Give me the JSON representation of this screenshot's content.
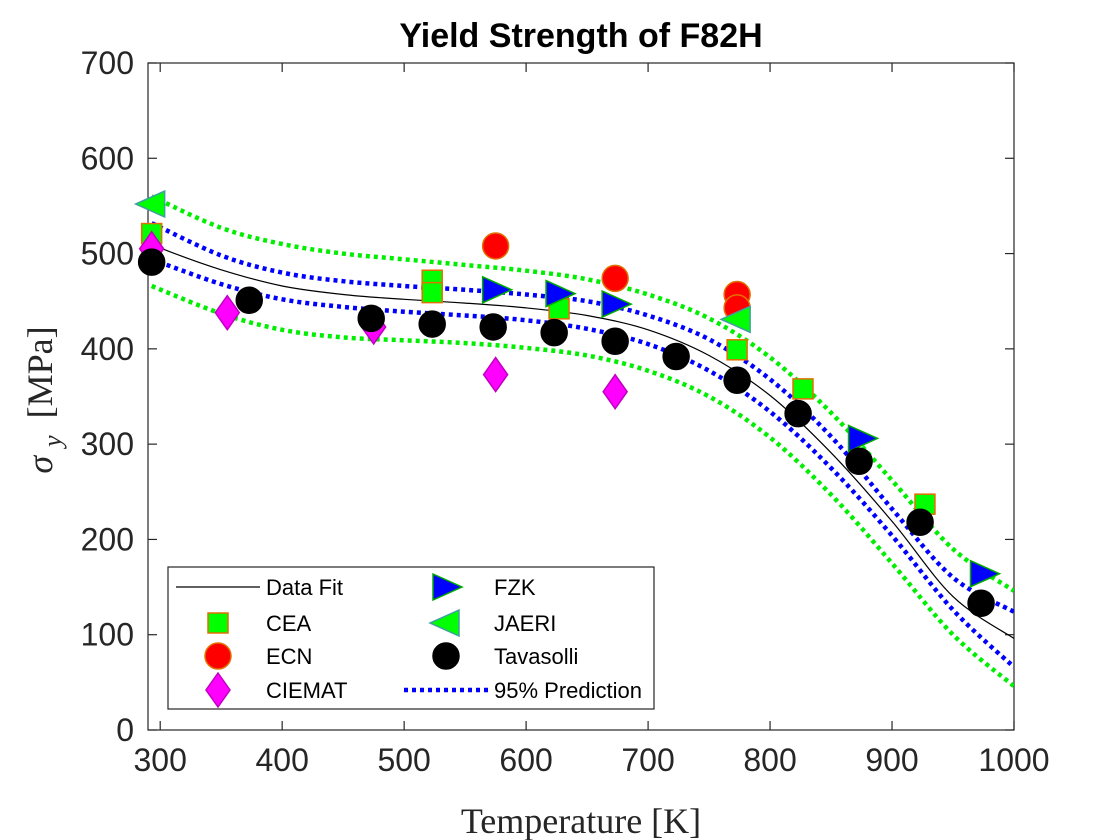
{
  "chart_data": {
    "type": "scatter",
    "title": "Yield Strength of F82H",
    "xlabel": "Temperature [K]",
    "ylabel_symbol": "σ",
    "ylabel_subscript": "y",
    "ylabel_unit": "[MPa]",
    "xlim": [
      290,
      1000
    ],
    "ylim": [
      0,
      700
    ],
    "xticks": [
      300,
      400,
      500,
      600,
      700,
      800,
      900,
      1000
    ],
    "yticks": [
      0,
      100,
      200,
      300,
      400,
      500,
      600,
      700
    ],
    "grid": false,
    "legend_position": "bottom-left",
    "series": [
      {
        "name": "Data Fit",
        "style": "line",
        "color": "#000000",
        "x": [
          293,
          300,
          350,
          400,
          450,
          500,
          550,
          600,
          650,
          700,
          750,
          800,
          850,
          900,
          950,
          1000
        ],
        "y": [
          512,
          506,
          483,
          466,
          457,
          452,
          448,
          443,
          435,
          420,
          393,
          351,
          291,
          219,
          140,
          96
        ]
      },
      {
        "name": "CEA",
        "marker": "square",
        "color": "#00ff00",
        "edge": "#e07000",
        "x": [
          293,
          523,
          523,
          627,
          773,
          827,
          927
        ],
        "y": [
          521,
          472,
          459,
          442,
          399,
          358,
          237
        ]
      },
      {
        "name": "ECN",
        "marker": "circle",
        "color": "#ff0000",
        "edge": "#e07000",
        "x": [
          575,
          673,
          773,
          773
        ],
        "y": [
          508,
          474,
          457,
          443
        ]
      },
      {
        "name": "CIEMAT",
        "marker": "diamond",
        "color": "#ff00ff",
        "edge": "#c000c0",
        "x": [
          293,
          355,
          475,
          575,
          673
        ],
        "y": [
          505,
          438,
          423,
          373,
          355
        ]
      },
      {
        "name": "FZK",
        "marker": "triangle-right",
        "color": "#0000ff",
        "edge": "#00aa00",
        "x": [
          575,
          627,
          673,
          875,
          975
        ],
        "y": [
          462,
          458,
          447,
          306,
          164
        ]
      },
      {
        "name": "JAERI",
        "marker": "triangle-left",
        "color": "#00ff00",
        "edge": "#40a0a0",
        "x": [
          293,
          773
        ],
        "y": [
          552,
          431
        ]
      },
      {
        "name": "Tavasolli",
        "marker": "circle",
        "color": "#000000",
        "edge": "#000000",
        "x": [
          293,
          373,
          473,
          523,
          573,
          623,
          673,
          723,
          773,
          823,
          873,
          923,
          973
        ],
        "y": [
          491,
          451,
          432,
          426,
          423,
          417,
          408,
          392,
          367,
          332,
          282,
          218,
          133
        ]
      },
      {
        "name": "95% Prediction",
        "style": "dotted",
        "color": "#0000ff",
        "bands": [
          {
            "x": [
              293,
              350,
              400,
              450,
              500,
              550,
              600,
              650,
              700,
              750,
              800,
              850,
              900,
              950,
              1000
            ],
            "y": [
              532,
              498,
              480,
              471,
              466,
              462,
              457,
              450,
              435,
              410,
              368,
              308,
              232,
              160,
              124
            ]
          },
          {
            "x": [
              293,
              350,
              400,
              450,
              500,
              550,
              600,
              650,
              700,
              750,
              800,
              850,
              900,
              950,
              1000
            ],
            "y": [
              494,
              468,
              452,
              444,
              439,
              435,
              430,
              421,
              405,
              377,
              334,
              275,
              204,
              126,
              66
            ]
          }
        ]
      },
      {
        "name": "",
        "style": "dotted",
        "color": "#00ee00",
        "bands": [
          {
            "x": [
              293,
              350,
              400,
              450,
              500,
              550,
              600,
              650,
              700,
              750,
              800,
              850,
              900,
              950,
              1000
            ],
            "y": [
              560,
              527,
              510,
              500,
              494,
              488,
              482,
              473,
              457,
              432,
              391,
              333,
              262,
              190,
              146
            ]
          },
          {
            "x": [
              293,
              350,
              400,
              450,
              500,
              550,
              600,
              650,
              700,
              750,
              800,
              850,
              900,
              950,
              1000
            ],
            "y": [
              466,
              437,
              420,
              412,
              409,
              406,
              401,
              393,
              377,
              350,
              307,
              247,
              175,
              100,
              46
            ]
          }
        ]
      }
    ]
  }
}
